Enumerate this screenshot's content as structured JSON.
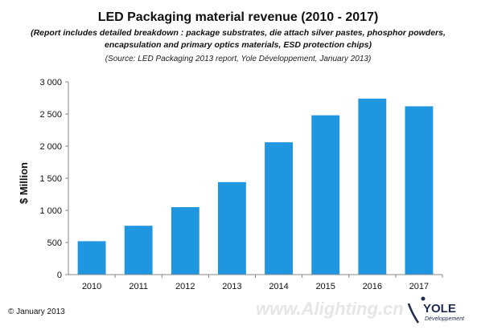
{
  "chart_data": {
    "type": "bar",
    "title": "LED Packaging material revenue (2010 - 2017)",
    "subtitle_lines": [
      "(Report includes detailed breakdown : package substrates, die attach silver pastes, phosphor powders,",
      "encapsulation and primary optics materials, ESD protection chips)"
    ],
    "source": "(Source: LED Packaging 2013 report, Yole Développement, January 2013)",
    "categories": [
      "2010",
      "2011",
      "2012",
      "2013",
      "2014",
      "2015",
      "2016",
      "2017"
    ],
    "values": [
      520,
      760,
      1050,
      1440,
      2060,
      2480,
      2740,
      2620
    ],
    "ylabel": "$ Million",
    "xlabel": "",
    "ylim": [
      0,
      3000
    ],
    "ytick_values": [
      0,
      500,
      1000,
      1500,
      2000,
      2500,
      3000
    ],
    "ytick_labels": [
      "0",
      "500",
      "1 000",
      "1 500",
      "2 000",
      "2 500",
      "3 000"
    ],
    "grid": false,
    "bar_color": "#2196e0",
    "axis_color": "#888888"
  },
  "footer": {
    "copyright": "© January 2013",
    "watermark": "www.Alighting.cn",
    "logo_name": "YOLE",
    "logo_sub": "Développement"
  }
}
